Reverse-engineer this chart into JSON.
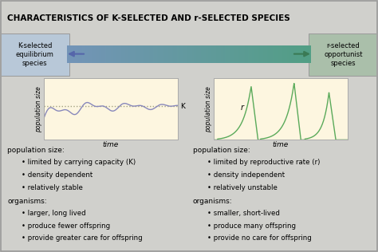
{
  "title": "CHARACTERISTICS OF K-SELECTED AND r-SELECTED SPECIES",
  "title_fontsize": 7.5,
  "bg_color": "#d0d0cc",
  "title_bg": "#c8c8c4",
  "left_box_color": "#b8c8d8",
  "right_box_color": "#aabfaa",
  "left_label": "K-selected\nequilibrium\nspecies",
  "right_label": "r-selected\nopportunist\nspecies",
  "graph_bg": "#fdf6e0",
  "left_text_headers": [
    "population size:",
    "organisms:"
  ],
  "left_text_bullets": [
    [
      "limited by carrying capacity (K)",
      "density dependent",
      "relatively stable"
    ],
    [
      "larger, long lived",
      "produce fewer offspring",
      "provide greater care for offspring"
    ]
  ],
  "right_text_headers": [
    "population size:",
    "organisms:"
  ],
  "right_text_bullets": [
    [
      "limited by reproductive rate (r)",
      "density independent",
      "relatively unstable"
    ],
    [
      "smaller, short-lived",
      "produce many offspring",
      "provide no care for offspring"
    ]
  ],
  "k_line_color": "#8888bb",
  "r_line_color": "#5aaa5a",
  "dotted_line_color": "#999977",
  "text_fontsize": 6.2,
  "header_fontsize": 6.5
}
